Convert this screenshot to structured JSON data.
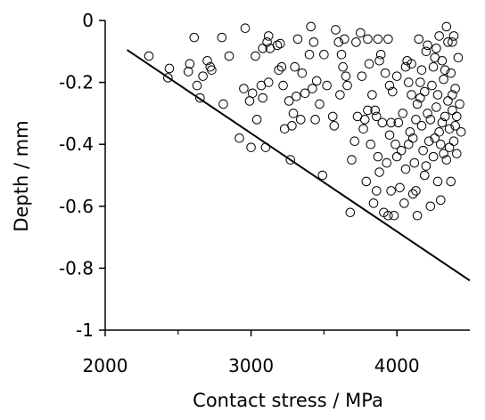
{
  "chart_data": {
    "type": "scatter",
    "title": "",
    "xlabel": "Contact stress / MPa",
    "ylabel": "Depth / mm",
    "xlim": [
      2000,
      4500
    ],
    "ylim": [
      -1,
      0
    ],
    "grid": false,
    "x_ticks": [
      {
        "value": 2000,
        "label": "2000"
      },
      {
        "value": 3000,
        "label": "3000"
      },
      {
        "value": 4000,
        "label": "4000"
      }
    ],
    "y_ticks": [
      {
        "value": 0,
        "label": "0"
      },
      {
        "value": -0.2,
        "label": "-0.2"
      },
      {
        "value": -0.4,
        "label": "-0.4"
      },
      {
        "value": -0.6,
        "label": "-0.6"
      },
      {
        "value": -0.8,
        "label": "-0.8"
      },
      {
        "value": -1,
        "label": "-1"
      }
    ],
    "series": [
      {
        "marker": "open-circle",
        "color": "#000000",
        "points": [
          [
            2300,
            -0.115
          ],
          [
            2430,
            -0.185
          ],
          [
            2440,
            -0.155
          ],
          [
            2570,
            -0.165
          ],
          [
            2580,
            -0.14
          ],
          [
            2610,
            -0.055
          ],
          [
            2630,
            -0.21
          ],
          [
            2650,
            -0.25
          ],
          [
            2670,
            -0.18
          ],
          [
            2700,
            -0.13
          ],
          [
            2720,
            -0.15
          ],
          [
            2730,
            -0.16
          ],
          [
            2800,
            -0.055
          ],
          [
            2810,
            -0.27
          ],
          [
            2850,
            -0.115
          ],
          [
            2920,
            -0.38
          ],
          [
            2950,
            -0.22
          ],
          [
            2960,
            -0.025
          ],
          [
            2990,
            -0.26
          ],
          [
            3000,
            -0.41
          ],
          [
            3010,
            -0.235
          ],
          [
            3030,
            -0.115
          ],
          [
            3040,
            -0.32
          ],
          [
            3070,
            -0.21
          ],
          [
            3080,
            -0.25
          ],
          [
            3080,
            -0.09
          ],
          [
            3100,
            -0.41
          ],
          [
            3110,
            -0.07
          ],
          [
            3120,
            -0.05
          ],
          [
            3120,
            -0.2
          ],
          [
            3130,
            -0.09
          ],
          [
            3180,
            -0.08
          ],
          [
            3190,
            -0.16
          ],
          [
            3200,
            -0.075
          ],
          [
            3210,
            -0.15
          ],
          [
            3220,
            -0.21
          ],
          [
            3230,
            -0.35
          ],
          [
            3260,
            -0.26
          ],
          [
            3270,
            -0.45
          ],
          [
            3280,
            -0.34
          ],
          [
            3290,
            -0.3
          ],
          [
            3300,
            -0.15
          ],
          [
            3310,
            -0.245
          ],
          [
            3320,
            -0.06
          ],
          [
            3340,
            -0.32
          ],
          [
            3350,
            -0.17
          ],
          [
            3370,
            -0.235
          ],
          [
            3400,
            -0.11
          ],
          [
            3410,
            -0.02
          ],
          [
            3420,
            -0.22
          ],
          [
            3430,
            -0.07
          ],
          [
            3440,
            -0.32
          ],
          [
            3450,
            -0.195
          ],
          [
            3470,
            -0.27
          ],
          [
            3490,
            -0.5
          ],
          [
            3500,
            -0.11
          ],
          [
            3520,
            -0.21
          ],
          [
            3560,
            -0.31
          ],
          [
            3570,
            -0.34
          ],
          [
            3580,
            -0.03
          ],
          [
            3600,
            -0.07
          ],
          [
            3610,
            -0.24
          ],
          [
            3620,
            -0.11
          ],
          [
            3630,
            -0.15
          ],
          [
            3640,
            -0.06
          ],
          [
            3650,
            -0.18
          ],
          [
            3660,
            -0.21
          ],
          [
            3680,
            -0.62
          ],
          [
            3690,
            -0.45
          ],
          [
            3710,
            -0.39
          ],
          [
            3720,
            -0.07
          ],
          [
            3730,
            -0.31
          ],
          [
            3750,
            -0.04
          ],
          [
            3760,
            -0.18
          ],
          [
            3770,
            -0.35
          ],
          [
            3780,
            -0.32
          ],
          [
            3790,
            -0.52
          ],
          [
            3800,
            -0.06
          ],
          [
            3800,
            -0.29
          ],
          [
            3810,
            -0.14
          ],
          [
            3820,
            -0.4
          ],
          [
            3830,
            -0.24
          ],
          [
            3840,
            -0.59
          ],
          [
            3850,
            -0.29
          ],
          [
            3860,
            -0.55
          ],
          [
            3860,
            -0.31
          ],
          [
            3870,
            -0.06
          ],
          [
            3870,
            -0.44
          ],
          [
            3880,
            -0.49
          ],
          [
            3880,
            -0.13
          ],
          [
            3890,
            -0.11
          ],
          [
            3900,
            -0.33
          ],
          [
            3910,
            -0.62
          ],
          [
            3920,
            -0.17
          ],
          [
            3930,
            -0.46
          ],
          [
            3940,
            -0.63
          ],
          [
            3940,
            -0.06
          ],
          [
            3950,
            -0.21
          ],
          [
            3950,
            -0.37
          ],
          [
            3960,
            -0.55
          ],
          [
            3960,
            -0.33
          ],
          [
            3970,
            -0.23
          ],
          [
            3980,
            -0.63
          ],
          [
            3990,
            -0.4
          ],
          [
            4000,
            -0.18
          ],
          [
            4000,
            -0.44
          ],
          [
            4010,
            -0.33
          ],
          [
            4020,
            -0.54
          ],
          [
            4030,
            -0.42
          ],
          [
            4040,
            -0.3
          ],
          [
            4050,
            -0.59
          ],
          [
            4060,
            -0.15
          ],
          [
            4070,
            -0.13
          ],
          [
            4080,
            -0.4
          ],
          [
            4080,
            -0.2
          ],
          [
            4090,
            -0.36
          ],
          [
            4100,
            -0.24
          ],
          [
            4100,
            -0.14
          ],
          [
            4110,
            -0.56
          ],
          [
            4120,
            -0.46
          ],
          [
            4130,
            -0.32
          ],
          [
            4130,
            -0.55
          ],
          [
            4140,
            -0.27
          ],
          [
            4140,
            -0.63
          ],
          [
            4150,
            -0.06
          ],
          [
            4160,
            -0.2
          ],
          [
            4170,
            -0.34
          ],
          [
            4170,
            -0.16
          ],
          [
            4180,
            -0.42
          ],
          [
            4190,
            -0.5
          ],
          [
            4190,
            -0.23
          ],
          [
            4200,
            -0.1
          ],
          [
            4200,
            -0.47
          ],
          [
            4210,
            -0.3
          ],
          [
            4210,
            -0.08
          ],
          [
            4220,
            -0.39
          ],
          [
            4230,
            -0.6
          ],
          [
            4230,
            -0.32
          ],
          [
            4240,
            -0.21
          ],
          [
            4250,
            -0.44
          ],
          [
            4250,
            -0.15
          ],
          [
            4260,
            -0.38
          ],
          [
            4260,
            -0.12
          ],
          [
            4270,
            -0.28
          ],
          [
            4280,
            -0.52
          ],
          [
            4280,
            -0.24
          ],
          [
            4290,
            -0.36
          ],
          [
            4300,
            -0.4
          ],
          [
            4300,
            -0.58
          ],
          [
            4310,
            -0.13
          ],
          [
            4310,
            -0.33
          ],
          [
            4320,
            -0.43
          ],
          [
            4320,
            -0.19
          ],
          [
            4330,
            -0.31
          ],
          [
            4340,
            -0.45
          ],
          [
            4340,
            -0.02
          ],
          [
            4350,
            -0.26
          ],
          [
            4350,
            -0.07
          ],
          [
            4360,
            -0.41
          ],
          [
            4360,
            -0.35
          ],
          [
            4370,
            -0.17
          ],
          [
            4370,
            -0.52
          ],
          [
            4380,
            -0.29
          ],
          [
            4380,
            -0.24
          ],
          [
            4390,
            -0.39
          ],
          [
            4390,
            -0.05
          ],
          [
            4400,
            -0.34
          ],
          [
            4400,
            -0.22
          ],
          [
            4410,
            -0.31
          ],
          [
            4410,
            -0.43
          ],
          [
            4420,
            -0.12
          ],
          [
            4430,
            -0.27
          ],
          [
            4440,
            -0.36
          ],
          [
            4380,
            -0.07
          ],
          [
            4290,
            -0.05
          ],
          [
            4270,
            -0.09
          ],
          [
            4330,
            -0.16
          ],
          [
            4160,
            -0.25
          ],
          [
            4110,
            -0.38
          ],
          [
            4060,
            -0.48
          ]
        ]
      },
      {
        "type": "line",
        "color": "#000000",
        "points": [
          [
            2150,
            -0.095
          ],
          [
            4500,
            -0.84
          ]
        ]
      }
    ]
  }
}
